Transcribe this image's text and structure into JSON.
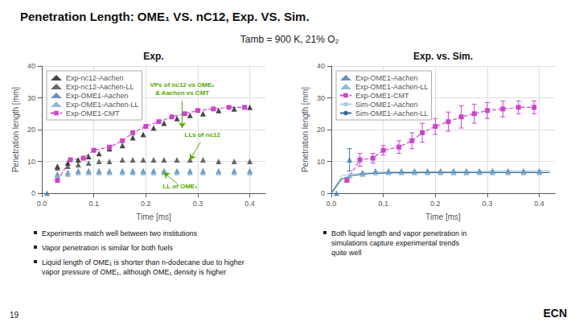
{
  "title": "Penetration Length: OME₁ VS. nC12, Exp. VS. Sim.",
  "subtitle": "Tamb = 900 K, 21% O₂",
  "annotations": [
    {
      "text": "19"
    },
    {
      "text": "ECN"
    }
  ],
  "chart_data": [
    {
      "type": "scatter",
      "title": "Exp.",
      "xlabel": "Time [ms]",
      "ylabel": "Penetration length [mm]",
      "xlim": [
        0.0,
        0.43
      ],
      "ylim": [
        0,
        40
      ],
      "xticks": [
        {
          "value": 0.0,
          "label": "0.0"
        },
        0.1,
        0.2,
        0.3,
        0.4
      ],
      "yticks": [
        0,
        10,
        20,
        30,
        40
      ],
      "grid": true,
      "legend": "upper left",
      "series": [
        {
          "name": "Exp-nc12-Aachen",
          "type": "scatter",
          "marker": "triangle",
          "color": "#1a1a1a",
          "x": [
            0.03,
            0.05,
            0.07,
            0.09,
            0.11,
            0.13,
            0.155,
            0.175,
            0.195,
            0.215,
            0.235,
            0.26,
            0.285,
            0.31,
            0.34,
            0.37,
            0.4
          ],
          "values": [
            8.5,
            9.5,
            10.5,
            11.5,
            12.5,
            14.0,
            15.0,
            17.5,
            18.5,
            20.5,
            22.0,
            23.5,
            24.5,
            25.0,
            26.0,
            26.5,
            27.0
          ]
        },
        {
          "name": "Exp-nc12-Aachen-LL",
          "type": "scatter",
          "marker": "triangle",
          "color": "#444444",
          "x": [
            0.03,
            0.05,
            0.07,
            0.09,
            0.11,
            0.13,
            0.155,
            0.175,
            0.195,
            0.215,
            0.235,
            0.26,
            0.285,
            0.31,
            0.34,
            0.37,
            0.4
          ],
          "values": [
            8.0,
            8.5,
            9.0,
            9.5,
            10.0,
            10.0,
            10.5,
            10.5,
            10.5,
            10.5,
            10.5,
            10.5,
            10.5,
            10.5,
            10.0,
            10.0,
            10.0
          ]
        },
        {
          "name": "Exp-OME1-Aachen",
          "type": "scatter",
          "marker": "triangle",
          "color": "#4477aa",
          "x": [
            0.01,
            0.03,
            0.05,
            0.07,
            0.09,
            0.11,
            0.13,
            0.155,
            0.175,
            0.195,
            0.215,
            0.235,
            0.26,
            0.285,
            0.31,
            0.34,
            0.37,
            0.4
          ],
          "values": [
            0.0,
            6.0,
            6.5,
            7.0,
            7.0,
            7.0,
            7.0,
            7.0,
            7.0,
            7.0,
            7.0,
            7.0,
            7.0,
            7.0,
            7.0,
            7.0,
            7.0,
            7.0
          ]
        },
        {
          "name": "Exp-OME1-Aachen-LL",
          "type": "scatter",
          "marker": "triangle",
          "color": "#77aacc",
          "x": [
            0.03,
            0.05,
            0.07,
            0.09,
            0.11,
            0.13,
            0.155,
            0.175,
            0.195,
            0.215,
            0.235,
            0.26,
            0.285,
            0.31,
            0.34,
            0.37,
            0.4
          ],
          "values": [
            5.5,
            6.0,
            6.5,
            6.5,
            6.5,
            6.5,
            6.5,
            6.5,
            6.5,
            6.5,
            6.5,
            6.5,
            6.5,
            6.5,
            6.5,
            6.5,
            6.5
          ]
        },
        {
          "name": "Exp-OME1-CMT",
          "type": "line",
          "marker": "square",
          "line_style": "dashed",
          "color": "#cc44cc",
          "x": [
            0.03,
            0.055,
            0.08,
            0.1,
            0.13,
            0.155,
            0.175,
            0.2,
            0.225,
            0.25,
            0.275,
            0.3,
            0.33,
            0.36,
            0.39
          ],
          "values": [
            4.0,
            10.5,
            11.0,
            13.5,
            14.5,
            16.5,
            19.0,
            21.0,
            22.5,
            24.0,
            25.0,
            26.0,
            26.5,
            27.0,
            27.0
          ]
        }
      ],
      "annotations": [
        {
          "text": "VPs of nc12 vs OME₁\n& Aachen vs CMT",
          "color": "#55aa00",
          "xy": [
            0.27,
            20.5
          ],
          "xytext": [
            0.27,
            29
          ]
        },
        {
          "text": "LLs of nc12",
          "color": "#55aa00",
          "xy": [
            0.285,
            10.5
          ],
          "xytext": [
            0.305,
            16.0
          ]
        },
        {
          "text": "LL of OME₁",
          "color": "#55aa00",
          "xy": [
            0.235,
            6.5
          ],
          "xytext": [
            0.26,
            3.0
          ]
        },
        {
          "text": "Experiments match well between two institutions"
        },
        {
          "text": "Vapor penetration is similar for both fuels"
        },
        {
          "text": "Liquid length of OME₁ is shorter than n-dodecane due to higher\nvapor pressure of OME₁, although OME₁ density is higher"
        }
      ]
    },
    {
      "type": "scatter",
      "title": "Exp. vs. Sim.",
      "xlabel": "Time [ms]",
      "ylabel": "Penetration length [mm]",
      "xlim": [
        0.0,
        0.43
      ],
      "ylim": [
        0,
        40
      ],
      "xticks": [
        {
          "value": 0.0,
          "label": "0.0"
        },
        0.1,
        0.2,
        0.3,
        0.4
      ],
      "yticks": [
        0,
        10,
        20,
        30,
        40
      ],
      "grid": true,
      "legend": "upper left",
      "series": [
        {
          "name": "Exp-OME1-Aachen",
          "type": "scatter",
          "marker": "triangle",
          "color": "#4477aa",
          "x": [
            0.01,
            0.035,
            0.06,
            0.085,
            0.11,
            0.135,
            0.16,
            0.185,
            0.21,
            0.235,
            0.26,
            0.285,
            0.31,
            0.34,
            0.37,
            0.4
          ],
          "values": [
            0.0,
            10.5,
            6.5,
            7.0,
            7.0,
            7.0,
            7.0,
            7.0,
            7.0,
            7.0,
            7.0,
            7.0,
            7.0,
            7.0,
            7.0,
            7.0
          ],
          "errors": [
            null,
            3.5,
            null,
            null,
            null,
            null,
            null,
            null,
            null,
            null,
            null,
            null,
            null,
            null,
            null,
            null
          ]
        },
        {
          "name": "Exp-OME1-Aachen-LL",
          "type": "scatter",
          "marker": "triangle",
          "color": "#77aacc",
          "x": [
            0.035,
            0.06,
            0.085,
            0.11,
            0.135,
            0.16,
            0.185,
            0.21,
            0.235,
            0.26,
            0.285,
            0.31,
            0.34,
            0.37,
            0.4
          ],
          "values": [
            5.5,
            6.0,
            6.5,
            6.5,
            6.5,
            6.5,
            6.5,
            6.5,
            6.5,
            6.5,
            6.5,
            6.5,
            6.5,
            6.5,
            6.5
          ]
        },
        {
          "name": "Exp-OME1-CMT",
          "type": "line",
          "marker": "square",
          "line_style": "dashed",
          "color": "#cc44cc",
          "x": [
            0.03,
            0.055,
            0.08,
            0.1,
            0.13,
            0.155,
            0.175,
            0.2,
            0.225,
            0.25,
            0.275,
            0.3,
            0.33,
            0.36,
            0.39
          ],
          "values": [
            4.0,
            10.5,
            11.0,
            13.5,
            14.5,
            16.5,
            19.0,
            21.0,
            22.5,
            24.0,
            25.0,
            26.0,
            26.5,
            27.0,
            27.0
          ],
          "errors": [
            0.5,
            2.0,
            1.5,
            1.5,
            2.0,
            2.5,
            3.0,
            2.5,
            3.0,
            3.5,
            3.0,
            2.5,
            2.5,
            2.0,
            2.0
          ]
        },
        {
          "name": "Sim-OME1-Aachen",
          "type": "line",
          "marker": "none",
          "line_style": "solid",
          "color": "#aaccdd",
          "x": [
            0.0,
            0.02,
            0.04,
            0.06,
            0.08,
            0.1,
            0.12,
            0.14,
            0.16,
            0.18,
            0.2,
            0.22,
            0.24,
            0.26,
            0.28,
            0.3,
            0.32,
            0.34,
            0.36,
            0.38,
            0.4,
            0.42
          ],
          "values": [
            0.0,
            5.5,
            6.0,
            6.3,
            6.5,
            6.6,
            6.7,
            6.7,
            6.8,
            6.8,
            6.8,
            6.8,
            6.9,
            6.9,
            6.9,
            7.0,
            7.0,
            7.0,
            7.0,
            7.0,
            7.1,
            7.1
          ]
        },
        {
          "name": "Sim-OME1-Aachen-LL",
          "type": "line",
          "marker": "none",
          "line_style": "solid",
          "color": "#336699",
          "x": [
            0.0,
            0.02,
            0.04,
            0.06,
            0.08,
            0.1,
            0.12,
            0.14,
            0.16,
            0.18,
            0.2,
            0.22,
            0.24,
            0.26,
            0.28,
            0.3,
            0.32,
            0.34,
            0.36,
            0.38,
            0.4,
            0.42
          ],
          "values": [
            0.0,
            4.5,
            5.5,
            6.0,
            6.2,
            6.3,
            6.4,
            6.4,
            6.4,
            6.5,
            6.5,
            6.5,
            6.5,
            6.5,
            6.5,
            6.5,
            6.5,
            6.5,
            6.5,
            6.5,
            6.5,
            6.5
          ]
        }
      ],
      "annotations": [
        {
          "text": "Both liquid length and vapor penetration in\nsimulations capture experimental trends\nquite well"
        }
      ]
    }
  ]
}
